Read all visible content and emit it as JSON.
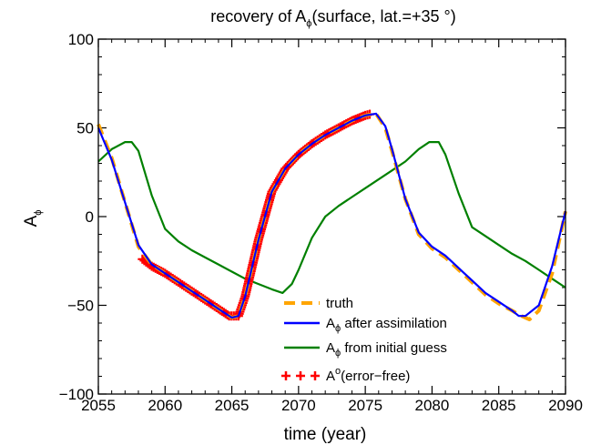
{
  "chart_data": {
    "type": "line",
    "title": {
      "main": "recovery of A",
      "sub": "ϕ",
      "rest": "(surface, lat.=+35  °)"
    },
    "xlabel": "time (year)",
    "ylabel": {
      "main": "A",
      "sub": "ϕ"
    },
    "xlim": [
      2055,
      2090
    ],
    "ylim": [
      -100,
      100
    ],
    "xticks": [
      "2055",
      "2060",
      "2065",
      "2070",
      "2075",
      "2080",
      "2085",
      "2090"
    ],
    "yticks": [
      "−100",
      "−50",
      "0",
      "50",
      "100"
    ],
    "grid": false,
    "legend_position": "bottom-right",
    "series": [
      {
        "key": "truth",
        "color": "#FFA500",
        "style": "dashed",
        "legend": {
          "main": "truth"
        },
        "x": [
          2055,
          2056,
          2057,
          2058,
          2059,
          2060,
          2061,
          2062,
          2063,
          2064,
          2065,
          2065.5,
          2066,
          2067,
          2068,
          2069,
          2070,
          2071,
          2072,
          2073,
          2074,
          2075,
          2075.8,
          2076.5,
          2077,
          2078,
          2079,
          2080,
          2081,
          2082,
          2083,
          2084,
          2085,
          2086,
          2086.7,
          2087.3,
          2088,
          2089,
          2090
        ],
        "y": [
          52,
          33,
          8,
          -17,
          -27,
          -32,
          -37,
          -42,
          -47,
          -52,
          -57,
          -56,
          -45,
          -13,
          14,
          27,
          35,
          41,
          46,
          50,
          54,
          57,
          58,
          50,
          37,
          10,
          -10,
          -18,
          -23,
          -30,
          -37,
          -44,
          -49,
          -53,
          -56,
          -58,
          -53,
          -32,
          3
        ]
      },
      {
        "key": "after_assimilation",
        "color": "#0000FF",
        "style": "solid",
        "legend": {
          "main": "A",
          "sub": "ϕ",
          "rest": " after assimilation"
        },
        "x": [
          2055,
          2056,
          2057,
          2058,
          2059,
          2060,
          2061,
          2062,
          2063,
          2064,
          2065,
          2065.5,
          2066,
          2067,
          2068,
          2069,
          2070,
          2071,
          2072,
          2073,
          2074,
          2075,
          2075.8,
          2076.5,
          2077,
          2078,
          2079,
          2080,
          2081,
          2082,
          2083,
          2084,
          2085,
          2086,
          2086.5,
          2087,
          2088,
          2089,
          2090
        ],
        "y": [
          50,
          32,
          8,
          -16,
          -27,
          -32,
          -37,
          -42,
          -47,
          -52,
          -57,
          -56,
          -45,
          -13,
          14,
          27,
          35,
          41,
          46,
          50,
          54,
          57,
          58,
          51,
          38,
          10,
          -9,
          -17,
          -22,
          -29,
          -36,
          -43,
          -48,
          -53,
          -56,
          -56,
          -50,
          -28,
          3
        ]
      },
      {
        "key": "initial_guess",
        "color": "#008000",
        "style": "solid",
        "legend": {
          "main": "A",
          "sub": "ϕ",
          "rest": " from initial guess"
        },
        "x": [
          2055,
          2056,
          2057,
          2057.5,
          2058,
          2059,
          2060,
          2061,
          2062,
          2063,
          2064,
          2065,
          2066,
          2067,
          2068,
          2068.8,
          2069.5,
          2070,
          2071,
          2072,
          2073,
          2074,
          2075,
          2076,
          2077,
          2078,
          2079,
          2079.8,
          2080.5,
          2081,
          2082,
          2083,
          2084,
          2085,
          2086,
          2087,
          2088,
          2089,
          2090
        ],
        "y": [
          31,
          38,
          42,
          42,
          37,
          12,
          -7,
          -14,
          -19,
          -23,
          -27,
          -31,
          -35,
          -38,
          -41,
          -43,
          -38,
          -30,
          -12,
          0,
          6,
          11,
          16,
          21,
          26,
          31,
          38,
          42,
          42,
          35,
          13,
          -6,
          -11,
          -16,
          -21,
          -25,
          -30,
          -35,
          -40
        ]
      },
      {
        "key": "observations",
        "color": "#FF0000",
        "style": "markers",
        "legend": {
          "main": "A",
          "sup": "o",
          "rest": "(error−free)"
        },
        "x": [
          2058.3,
          2059,
          2060,
          2061,
          2062,
          2063,
          2064,
          2064.8,
          2065.5,
          2066,
          2067,
          2068,
          2069,
          2070,
          2071,
          2072,
          2073,
          2074,
          2075,
          2075.5
        ],
        "y": [
          -24,
          -28,
          -32,
          -37,
          -42,
          -47,
          -52,
          -56,
          -56,
          -45,
          -13,
          14,
          27,
          35,
          41,
          46,
          50,
          54,
          57,
          58
        ]
      }
    ]
  }
}
